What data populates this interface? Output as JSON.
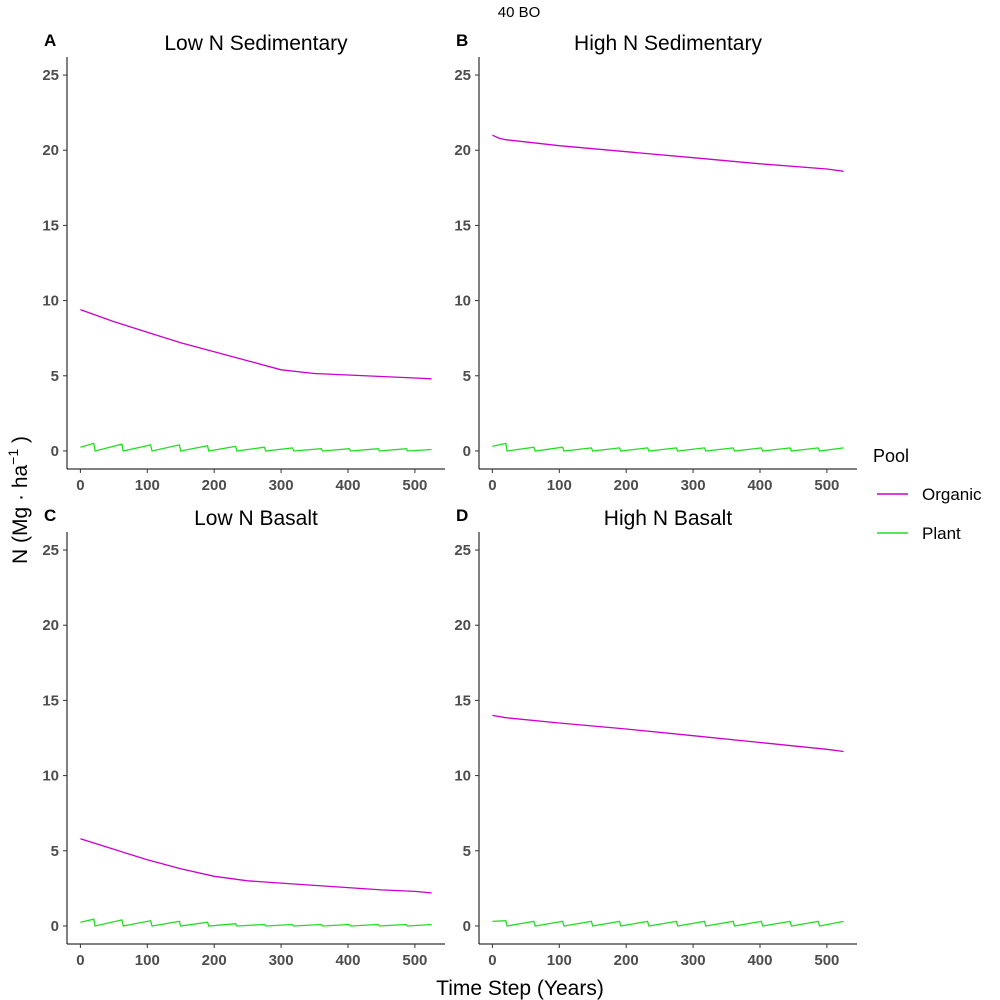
{
  "figure": {
    "suptitle": "40 BO",
    "xlabel": "Time Step (Years)",
    "ylabel_main": "N (Mg · ha",
    "ylabel_sup": "−1",
    "ylabel_close": " )"
  },
  "legend": {
    "title": "Pool",
    "items": [
      {
        "label": "Organic",
        "color": "#cc00cc"
      },
      {
        "label": "Plant",
        "color": "#22dd22"
      }
    ]
  },
  "chart_data": [
    {
      "type": "line",
      "letter": "A",
      "title": "Low N Sedimentary",
      "xlim": [
        -20,
        545
      ],
      "ylim": [
        -1.2,
        26.2
      ],
      "xticks": [
        0,
        100,
        200,
        300,
        400,
        500
      ],
      "yticks": [
        0,
        5,
        10,
        15,
        20,
        25
      ],
      "series": [
        {
          "name": "Organic",
          "x": [
            0,
            50,
            100,
            150,
            200,
            250,
            300,
            350,
            400,
            450,
            500,
            525
          ],
          "y": [
            9.4,
            8.6,
            7.9,
            7.2,
            6.6,
            6.0,
            5.4,
            5.15,
            5.05,
            4.95,
            4.85,
            4.8
          ]
        },
        {
          "name": "Plant",
          "x": [
            0,
            20,
            62,
            105,
            148,
            190,
            232,
            275,
            317,
            360,
            402,
            445,
            487,
            525
          ],
          "y": [
            0.25,
            0.5,
            0.45,
            0.4,
            0.4,
            0.35,
            0.3,
            0.25,
            0.2,
            0.15,
            0.15,
            0.15,
            0.15,
            0.1
          ]
        }
      ]
    },
    {
      "type": "line",
      "letter": "B",
      "title": "High N Sedimentary",
      "xlim": [
        -20,
        545
      ],
      "ylim": [
        -1.2,
        26.2
      ],
      "xticks": [
        0,
        100,
        200,
        300,
        400,
        500
      ],
      "yticks": [
        0,
        5,
        10,
        15,
        20,
        25
      ],
      "series": [
        {
          "name": "Organic",
          "x": [
            0,
            10,
            20,
            100,
            200,
            300,
            400,
            500,
            525
          ],
          "y": [
            21.0,
            20.8,
            20.7,
            20.3,
            19.9,
            19.5,
            19.1,
            18.75,
            18.6
          ]
        },
        {
          "name": "Plant",
          "x": [
            0,
            20,
            62,
            105,
            148,
            190,
            232,
            275,
            317,
            360,
            402,
            445,
            487,
            525
          ],
          "y": [
            0.3,
            0.5,
            0.25,
            0.25,
            0.2,
            0.2,
            0.2,
            0.2,
            0.2,
            0.2,
            0.2,
            0.2,
            0.2,
            0.2
          ]
        }
      ]
    },
    {
      "type": "line",
      "letter": "C",
      "title": "Low N Basalt",
      "xlim": [
        -20,
        545
      ],
      "ylim": [
        -1.2,
        26.2
      ],
      "xticks": [
        0,
        100,
        200,
        300,
        400,
        500
      ],
      "yticks": [
        0,
        5,
        10,
        15,
        20,
        25
      ],
      "series": [
        {
          "name": "Organic",
          "x": [
            0,
            50,
            100,
            150,
            200,
            250,
            300,
            350,
            400,
            450,
            500,
            525
          ],
          "y": [
            5.8,
            5.1,
            4.4,
            3.8,
            3.3,
            3.0,
            2.85,
            2.7,
            2.55,
            2.4,
            2.3,
            2.2
          ]
        },
        {
          "name": "Plant",
          "x": [
            0,
            20,
            62,
            105,
            148,
            190,
            232,
            275,
            317,
            360,
            402,
            445,
            487,
            525
          ],
          "y": [
            0.25,
            0.45,
            0.4,
            0.35,
            0.3,
            0.25,
            0.15,
            0.1,
            0.1,
            0.1,
            0.1,
            0.1,
            0.1,
            0.1
          ]
        }
      ]
    },
    {
      "type": "line",
      "letter": "D",
      "title": "High N Basalt",
      "xlim": [
        -20,
        545
      ],
      "ylim": [
        -1.2,
        26.2
      ],
      "xticks": [
        0,
        100,
        200,
        300,
        400,
        500
      ],
      "yticks": [
        0,
        5,
        10,
        15,
        20,
        25
      ],
      "series": [
        {
          "name": "Organic",
          "x": [
            0,
            20,
            100,
            200,
            300,
            400,
            500,
            525
          ],
          "y": [
            14.0,
            13.85,
            13.5,
            13.1,
            12.65,
            12.2,
            11.75,
            11.6
          ]
        },
        {
          "name": "Plant",
          "x": [
            0,
            20,
            62,
            105,
            148,
            190,
            232,
            275,
            317,
            360,
            402,
            445,
            487,
            525
          ],
          "y": [
            0.3,
            0.35,
            0.3,
            0.3,
            0.3,
            0.3,
            0.3,
            0.3,
            0.3,
            0.3,
            0.3,
            0.3,
            0.3,
            0.3
          ]
        }
      ]
    }
  ]
}
